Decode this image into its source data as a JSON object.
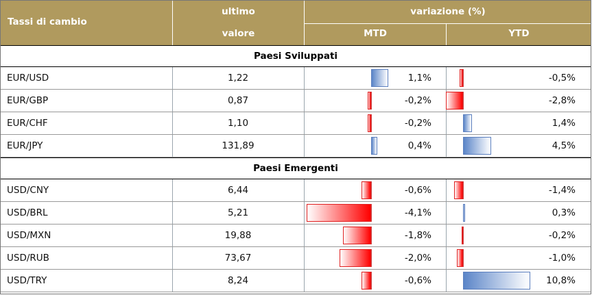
{
  "header": {
    "title": "Tassi di cambio",
    "last_line1": "ultimo",
    "last_line2": "valore",
    "variation": "variazione (%)",
    "mtd": "MTD",
    "ytd": "YTD"
  },
  "colors": {
    "header_bg": "#b09a5e",
    "positive_bar": "#5b85c8",
    "negative_bar": "#ff0000"
  },
  "sections": [
    {
      "title": "Paesi Sviluppati",
      "rows": [
        {
          "pair": "EUR/USD",
          "value": "1,22",
          "mtd": 1.1,
          "mtd_label": "1,1%",
          "ytd": -0.5,
          "ytd_label": "-0,5%"
        },
        {
          "pair": "EUR/GBP",
          "value": "0,87",
          "mtd": -0.2,
          "mtd_label": "-0,2%",
          "ytd": -2.8,
          "ytd_label": "-2,8%"
        },
        {
          "pair": "EUR/CHF",
          "value": "1,10",
          "mtd": -0.2,
          "mtd_label": "-0,2%",
          "ytd": 1.4,
          "ytd_label": "1,4%"
        },
        {
          "pair": "EUR/JPY",
          "value": "131,89",
          "mtd": 0.4,
          "mtd_label": "0,4%",
          "ytd": 4.5,
          "ytd_label": "4,5%"
        }
      ]
    },
    {
      "title": "Paesi Emergenti",
      "rows": [
        {
          "pair": "USD/CNY",
          "value": "6,44",
          "mtd": -0.6,
          "mtd_label": "-0,6%",
          "ytd": -1.4,
          "ytd_label": "-1,4%"
        },
        {
          "pair": "USD/BRL",
          "value": "5,21",
          "mtd": -4.1,
          "mtd_label": "-4,1%",
          "ytd": 0.3,
          "ytd_label": "0,3%"
        },
        {
          "pair": "USD/MXN",
          "value": "19,88",
          "mtd": -1.8,
          "mtd_label": "-1,8%",
          "ytd": -0.2,
          "ytd_label": "-0,2%"
        },
        {
          "pair": "USD/RUB",
          "value": "73,67",
          "mtd": -2.0,
          "mtd_label": "-2,0%",
          "ytd": -1.0,
          "ytd_label": "-1,0%"
        },
        {
          "pair": "USD/TRY",
          "value": "8,24",
          "mtd": -0.6,
          "mtd_label": "-0,6%",
          "ytd": 10.8,
          "ytd_label": "10,8%"
        }
      ]
    }
  ]
}
